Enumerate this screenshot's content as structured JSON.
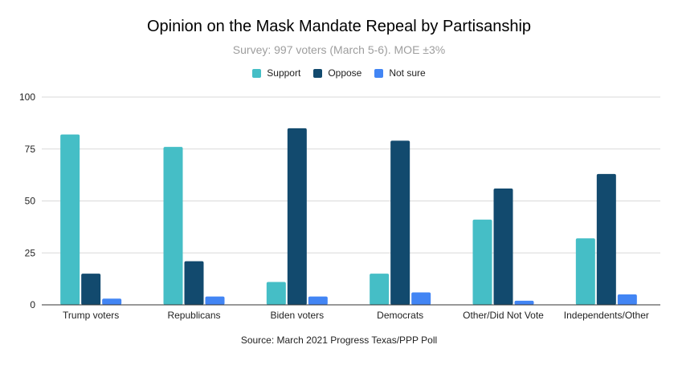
{
  "chart_data": {
    "type": "bar",
    "title": "Opinion on the Mask Mandate Repeal by Partisanship",
    "subtitle": "Survey: 997 voters (March 5-6). MOE ±3%",
    "source": "Source: March 2021 Progress Texas/PPP Poll",
    "categories": [
      "Trump voters",
      "Republicans",
      "Biden voters",
      "Democrats",
      "Other/Did Not Vote",
      "Independents/Other"
    ],
    "series": [
      {
        "name": "Support",
        "color": "#45bec6",
        "values": [
          82,
          76,
          11,
          15,
          41,
          32
        ]
      },
      {
        "name": "Oppose",
        "color": "#124a6e",
        "values": [
          15,
          21,
          85,
          79,
          56,
          63
        ]
      },
      {
        "name": "Not sure",
        "color": "#4285f4",
        "values": [
          3,
          4,
          4,
          6,
          2,
          5
        ]
      }
    ],
    "ylim": [
      0,
      100
    ],
    "yticks": [
      0,
      25,
      50,
      75,
      100
    ],
    "grid": true,
    "legend_position": "top"
  }
}
